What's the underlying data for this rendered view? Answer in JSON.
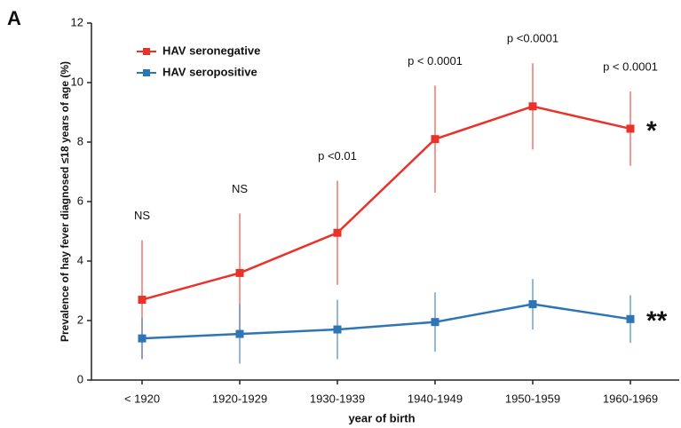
{
  "panel_label": "A",
  "chart_data": {
    "type": "line",
    "ylabel": "Prevalence of hay fever diagnosed ≤18 years of age (%)",
    "xlabel": "year of birth",
    "categories": [
      "< 1920",
      "1920-1929",
      "1930-1939",
      "1940-1949",
      "1950-1959",
      "1960-1969"
    ],
    "annotations": [
      "NS",
      "NS",
      "p <0.01",
      "p < 0.0001",
      "p <0.0001",
      "p  < 0.0001"
    ],
    "series": [
      {
        "name": "HAV seronegative",
        "color": "#e8322a",
        "values": [
          2.7,
          3.6,
          4.95,
          8.1,
          9.2,
          8.45
        ],
        "errors": [
          2.0,
          2.0,
          1.75,
          1.8,
          1.45,
          1.25
        ],
        "note": "*"
      },
      {
        "name": "HAV seropositive",
        "color": "#2e75b6",
        "values": [
          1.4,
          1.55,
          1.7,
          1.95,
          2.55,
          2.05
        ],
        "errors": [
          0.7,
          1.0,
          1.0,
          1.0,
          0.85,
          0.8
        ],
        "note": "**"
      }
    ],
    "ylim": [
      0,
      12
    ],
    "yticks": [
      0,
      2,
      4,
      6,
      8,
      10,
      12
    ],
    "legend": "upper left"
  }
}
